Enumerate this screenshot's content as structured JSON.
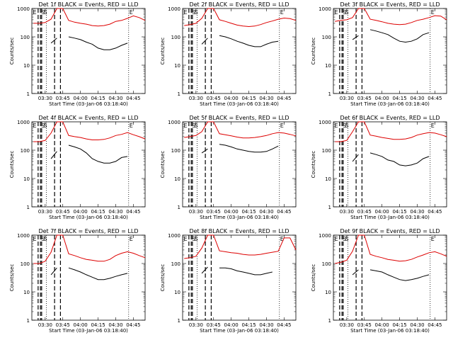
{
  "panels": [
    {
      "title": "Det  1f  BLACK = Events, RED = LLD"
    },
    {
      "title": "Det  2f  BLACK = Events, RED = LLD"
    },
    {
      "title": "Det  3f  BLACK = Events, RED = LLD"
    },
    {
      "title": "Det  4f  BLACK = Events, RED = LLD"
    },
    {
      "title": "Det  5f  BLACK = Events, RED = LLD"
    },
    {
      "title": "Det  6f  BLACK = Events, RED = LLD"
    },
    {
      "title": "Det  7f  BLACK = Events, RED = LLD"
    },
    {
      "title": "Det  8f  BLACK = Events, RED = LLD"
    },
    {
      "title": "Det  9f  BLACK = Events, RED = LLD"
    }
  ],
  "shared": {
    "ylabel": "Counts/sec",
    "xlabel": "Start Time (03-Jan-06 03:18:40)",
    "xticks": [
      "03:30",
      "03:45",
      "04:00",
      "04:15",
      "04:30",
      "04:45"
    ],
    "yticks": [
      "1",
      "10",
      "100",
      "1000"
    ],
    "markers": [
      "E",
      "S",
      "S",
      "E"
    ]
  },
  "colors": {
    "events": "#000000",
    "lld": "#dd0000",
    "axis": "#000000"
  },
  "chart_data": {
    "type": "line",
    "layout": "3x3 grid of panels",
    "yscale": "log",
    "ylim": [
      1,
      1000
    ],
    "xlim": [
      "03:18:40",
      "04:55:00"
    ],
    "vertical_lines": [
      {
        "time": "03:24",
        "style": "dashed"
      },
      {
        "time": "03:26",
        "style": "dashed"
      },
      {
        "time": "03:27",
        "style": "dashed"
      },
      {
        "time": "03:31",
        "style": "dotted"
      },
      {
        "time": "03:38",
        "style": "dashed"
      },
      {
        "time": "03:43",
        "style": "dashed"
      },
      {
        "time": "04:41",
        "style": "dotted"
      }
    ],
    "x": [
      "03:20",
      "03:25",
      "03:30",
      "03:35",
      "03:40",
      "03:45",
      "03:50",
      "03:55",
      "04:00",
      "04:05",
      "04:10",
      "04:15",
      "04:20",
      "04:25",
      "04:30",
      "04:35",
      "04:40",
      "04:45",
      "04:50",
      "04:55"
    ],
    "panels": [
      {
        "series": [
          {
            "name": "LLD",
            "values": [
              300,
              300,
              320,
              420,
              1000,
              1000,
              380,
              330,
              300,
              280,
              250,
              240,
              250,
              280,
              350,
              380,
              450,
              550,
              480,
              380
            ]
          },
          {
            "name": "Events",
            "values": [
              null,
              null,
              null,
              60,
              90,
              null,
              100,
              90,
              80,
              65,
              55,
              40,
              35,
              35,
              40,
              50,
              60,
              null,
              null,
              null
            ]
          }
        ]
      },
      {
        "series": [
          {
            "name": "LLD",
            "values": [
              250,
              270,
              300,
              450,
              1000,
              1000,
              400,
              350,
              300,
              260,
              240,
              230,
              240,
              270,
              320,
              360,
              420,
              460,
              440,
              380
            ]
          },
          {
            "name": "Events",
            "values": [
              null,
              null,
              null,
              55,
              90,
              null,
              110,
              100,
              85,
              70,
              60,
              50,
              45,
              45,
              55,
              65,
              70,
              null,
              null,
              null
            ]
          }
        ]
      },
      {
        "series": [
          {
            "name": "LLD",
            "values": [
              350,
              380,
              400,
              480,
              1000,
              1000,
              420,
              380,
              340,
              300,
              280,
              270,
              280,
              320,
              380,
              420,
              480,
              560,
              540,
              400
            ]
          },
          {
            "name": "Events",
            "values": [
              null,
              null,
              null,
              80,
              110,
              null,
              180,
              160,
              140,
              120,
              90,
              70,
              65,
              70,
              85,
              120,
              140,
              null,
              null,
              null
            ]
          }
        ]
      },
      {
        "series": [
          {
            "name": "LLD",
            "values": [
              200,
              200,
              220,
              400,
              1000,
              1000,
              330,
              300,
              280,
              250,
              230,
              230,
              240,
              270,
              330,
              360,
              420,
              350,
              300,
              250
            ]
          },
          {
            "name": "Events",
            "values": [
              null,
              null,
              null,
              50,
              90,
              null,
              150,
              130,
              110,
              80,
              50,
              40,
              35,
              35,
              40,
              55,
              60,
              null,
              null,
              null
            ]
          }
        ]
      },
      {
        "series": [
          {
            "name": "LLD",
            "values": [
              280,
              300,
              330,
              450,
              1000,
              1000,
              380,
              350,
              320,
              290,
              270,
              270,
              280,
              300,
              330,
              380,
              420,
              400,
              360,
              320
            ]
          },
          {
            "name": "Events",
            "values": [
              null,
              null,
              null,
              80,
              110,
              null,
              160,
              150,
              130,
              110,
              100,
              90,
              85,
              85,
              90,
              110,
              140,
              null,
              null,
              null
            ]
          }
        ]
      },
      {
        "series": [
          {
            "name": "LLD",
            "values": [
              200,
              200,
              220,
              450,
              1000,
              1000,
              340,
              310,
              280,
              260,
              240,
              240,
              250,
              280,
              340,
              380,
              420,
              400,
              350,
              300
            ]
          },
          {
            "name": "Events",
            "values": [
              null,
              null,
              null,
              40,
              70,
              null,
              80,
              70,
              60,
              45,
              40,
              30,
              28,
              30,
              35,
              50,
              60,
              null,
              null,
              null
            ]
          }
        ]
      },
      {
        "series": [
          {
            "name": "LLD",
            "values": [
              100,
              100,
              120,
              250,
              1000,
              1000,
              220,
              190,
              160,
              140,
              130,
              120,
              120,
              140,
              190,
              230,
              260,
              230,
              190,
              160
            ]
          },
          {
            "name": "Events",
            "values": [
              null,
              null,
              null,
              40,
              70,
              null,
              70,
              60,
              50,
              40,
              33,
              27,
              27,
              30,
              35,
              40,
              45,
              null,
              null,
              null
            ]
          }
        ]
      },
      {
        "series": [
          {
            "name": "LLD",
            "values": [
              150,
              160,
              180,
              350,
              1000,
              1000,
              280,
              260,
              240,
              230,
              210,
              200,
              200,
              210,
              230,
              250,
              270,
              800,
              800,
              300
            ]
          },
          {
            "name": "Events",
            "values": [
              null,
              null,
              null,
              45,
              75,
              null,
              70,
              70,
              65,
              55,
              50,
              45,
              40,
              40,
              45,
              50,
              null,
              null,
              null,
              null
            ]
          }
        ]
      },
      {
        "series": [
          {
            "name": "LLD",
            "values": [
              100,
              110,
              130,
              270,
              1000,
              1000,
              210,
              180,
              160,
              140,
              130,
              120,
              125,
              140,
              170,
              200,
              240,
              260,
              220,
              180
            ]
          },
          {
            "name": "Events",
            "values": [
              null,
              null,
              null,
              40,
              60,
              null,
              60,
              55,
              50,
              40,
              33,
              27,
              25,
              27,
              30,
              35,
              40,
              null,
              null,
              null
            ]
          }
        ]
      }
    ]
  }
}
